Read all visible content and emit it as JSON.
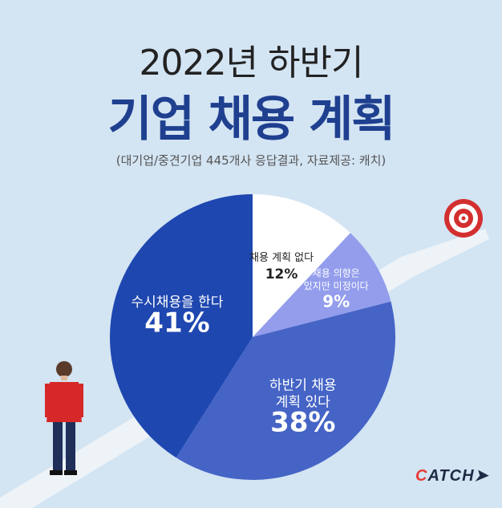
{
  "title_line1": "2022년 하반기",
  "title_line2": "기업 채용 계획",
  "subtitle": "(대기업/중견기업 445개사 응답결과, 자료제공: 캐치)",
  "logo": {
    "first_letter": "C",
    "rest": "ATCH"
  },
  "colors": {
    "background": "#d3e4f3",
    "accent": "#1f3f8f"
  },
  "chart_data": {
    "type": "pie",
    "slices": [
      {
        "label": "채용 계획 없다",
        "label_lines": [
          "채용 계획 없다"
        ],
        "value": 12,
        "value_text": "12%",
        "color": "#ffffff",
        "text_color": "#222222"
      },
      {
        "label": "채용 의향은 있지만 미정이다",
        "label_lines": [
          "채용 의향은",
          "있지만 미정이다"
        ],
        "value": 9,
        "value_text": "9%",
        "color": "#939dec",
        "text_color": "#ffffff"
      },
      {
        "label": "하반기 채용 계획 있다",
        "label_lines": [
          "하반기 채용",
          "계획 있다"
        ],
        "value": 38,
        "value_text": "38%",
        "color": "#4564c6",
        "text_color": "#ffffff"
      },
      {
        "label": "수시채용을 한다",
        "label_lines": [
          "수시채용을 한다"
        ],
        "value": 41,
        "value_text": "41%",
        "color": "#1f47b0",
        "text_color": "#ffffff"
      }
    ]
  }
}
